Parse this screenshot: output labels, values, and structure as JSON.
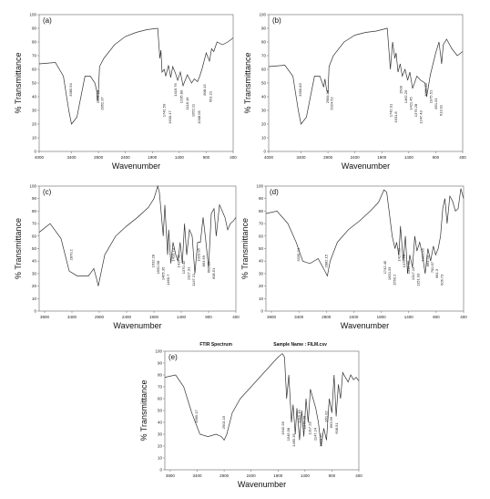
{
  "chart_data": [
    {
      "type": "line",
      "panel_label": "(a)",
      "xlabel": "Wavenumber",
      "ylabel": "% Transmittance",
      "xlim": [
        4000,
        400
      ],
      "ylim": [
        0,
        100
      ],
      "x_ticks": [
        4000,
        3400,
        2900,
        2400,
        1900,
        1400,
        900,
        400
      ],
      "y_ticks": [
        0,
        10,
        20,
        30,
        40,
        50,
        60,
        70,
        80,
        90,
        100
      ],
      "series": [
        {
          "x": [
            4000,
            3700,
            3550,
            3450,
            3400,
            3300,
            3150,
            3050,
            2965,
            2930,
            2921,
            2905,
            2880,
            2800,
            2600,
            2400,
            2200,
            2000,
            1800,
            1760,
            1740,
            1720,
            1680,
            1650,
            1600,
            1560,
            1520,
            1470,
            1430,
            1380,
            1330,
            1250,
            1170,
            1120,
            1060,
            1020,
            980,
            900,
            840,
            800,
            760,
            700,
            600,
            500,
            400
          ],
          "y": [
            64,
            65,
            55,
            30,
            20,
            25,
            55,
            55,
            50,
            44,
            37,
            40,
            62,
            68,
            78,
            84,
            87,
            89,
            90,
            68,
            74,
            58,
            60,
            55,
            63,
            54,
            62,
            57,
            52,
            58,
            48,
            56,
            50,
            53,
            51,
            55,
            60,
            72,
            66,
            75,
            73,
            80,
            78,
            80,
            83
          ]
        }
      ],
      "peak_labels": [
        "3385.54",
        "2921.18",
        "2852.37",
        "1741.50",
        "1630.17",
        "1416.76",
        "1235.89",
        "1118.16",
        "1052.11",
        "1008.05",
        "808.13",
        "601.21"
      ]
    },
    {
      "type": "line",
      "panel_label": "(b)",
      "xlabel": "Wavenumber",
      "ylabel": "% Transmittance",
      "xlim": [
        4000,
        400
      ],
      "ylim": [
        0,
        100
      ],
      "x_ticks": [
        4000,
        3400,
        2900,
        2400,
        1900,
        1400,
        900,
        400
      ],
      "y_ticks": [
        0,
        10,
        20,
        30,
        40,
        50,
        60,
        70,
        80,
        90,
        100
      ],
      "series": [
        {
          "x": [
            4000,
            3700,
            3550,
            3450,
            3400,
            3300,
            3150,
            3050,
            2980,
            2955,
            2925,
            2900,
            2880,
            2800,
            2600,
            2400,
            2200,
            2000,
            1800,
            1742,
            1700,
            1660,
            1635,
            1600,
            1560,
            1520,
            1470,
            1420,
            1380,
            1330,
            1250,
            1180,
            1100,
            1070,
            1050,
            1000,
            900,
            840,
            790,
            760,
            700,
            600,
            500,
            400
          ],
          "y": [
            62,
            63,
            55,
            30,
            20,
            25,
            55,
            55,
            47,
            53,
            45,
            43,
            62,
            70,
            80,
            85,
            87,
            88,
            90,
            60,
            80,
            68,
            72,
            58,
            64,
            55,
            60,
            52,
            58,
            46,
            55,
            52,
            50,
            40,
            44,
            56,
            72,
            80,
            64,
            78,
            82,
            75,
            70,
            73
          ]
        }
      ],
      "peak_labels": [
        "3395.83",
        "2984.96",
        "2924.52",
        "1742.01",
        "1631.8",
        "1500",
        "1462.29",
        "1421.45",
        "1379.28",
        "1247.43",
        "1080.88",
        "1075.51",
        "851.01",
        "613.91"
      ]
    },
    {
      "type": "line",
      "panel_label": "(c)",
      "xlabel": "Wavenumber",
      "ylabel": "% Transmittance",
      "xlim": [
        4000,
        400
      ],
      "ylim": [
        0,
        100
      ],
      "x_ticks": [
        3900,
        3400,
        2900,
        2400,
        1900,
        1400,
        900,
        400
      ],
      "y_ticks": [
        0,
        10,
        20,
        30,
        40,
        50,
        60,
        70,
        80,
        90,
        100
      ],
      "series": [
        {
          "x": [
            4000,
            3800,
            3600,
            3450,
            3300,
            3100,
            3000,
            2950,
            2919,
            2880,
            2800,
            2600,
            2400,
            2200,
            2000,
            1900,
            1830,
            1800,
            1730,
            1700,
            1650,
            1630,
            1590,
            1550,
            1500,
            1460,
            1420,
            1380,
            1340,
            1300,
            1250,
            1200,
            1150,
            1100,
            1050,
            1000,
            960,
            900,
            850,
            800,
            760,
            700,
            650,
            600,
            550,
            500,
            450,
            400
          ],
          "y": [
            63,
            70,
            58,
            32,
            28,
            28,
            34,
            26,
            20,
            28,
            45,
            60,
            68,
            75,
            83,
            90,
            100,
            95,
            60,
            85,
            45,
            65,
            38,
            55,
            45,
            40,
            55,
            38,
            70,
            45,
            65,
            60,
            30,
            55,
            55,
            75,
            60,
            35,
            78,
            82,
            60,
            85,
            80,
            75,
            65,
            70,
            72,
            75
          ]
        }
      ],
      "peak_labels": [
        "2870.2",
        "1632.28",
        "1550.58",
        "1465.35",
        "1460.7",
        "1416.73",
        "1415.49",
        "1370.42",
        "1317.31",
        "1147.21",
        "1020.95",
        "863.59",
        "666.15",
        "608.51"
      ]
    },
    {
      "type": "line",
      "panel_label": "(d)",
      "xlabel": "Wavenumber",
      "ylabel": "% Transmittance",
      "xlim": [
        4000,
        400
      ],
      "ylim": [
        0,
        100
      ],
      "x_ticks": [
        3900,
        3400,
        2900,
        2400,
        1900,
        1400,
        900,
        400
      ],
      "y_ticks": [
        0,
        10,
        20,
        30,
        40,
        50,
        60,
        70,
        80,
        90,
        100
      ],
      "series": [
        {
          "x": [
            4000,
            3800,
            3600,
            3450,
            3330,
            3200,
            3050,
            2950,
            2882,
            2830,
            2700,
            2500,
            2300,
            2100,
            1950,
            1850,
            1800,
            1742,
            1700,
            1650,
            1620,
            1580,
            1550,
            1500,
            1460,
            1420,
            1380,
            1330,
            1290,
            1250,
            1200,
            1150,
            1100,
            1050,
            1000,
            950,
            910,
            863,
            820,
            780,
            740,
            700,
            650,
            600,
            550,
            500,
            450,
            400
          ],
          "y": [
            78,
            80,
            70,
            55,
            40,
            38,
            42,
            34,
            28,
            40,
            55,
            65,
            72,
            80,
            87,
            97,
            95,
            75,
            60,
            50,
            55,
            45,
            68,
            40,
            60,
            30,
            45,
            35,
            60,
            48,
            55,
            45,
            30,
            50,
            40,
            52,
            45,
            50,
            60,
            82,
            90,
            70,
            92,
            88,
            80,
            82,
            98,
            90
          ]
        }
      ],
      "peak_labels": [
        "3335.24",
        "2882.15",
        "1742.45",
        "1620.33",
        "1550.2",
        "1417.33",
        "1370.19",
        "1316.69",
        "1317.15",
        "1151.03",
        "1031.85",
        "863.59",
        "700.57",
        "681.3",
        "606.73"
      ]
    },
    {
      "type": "line",
      "panel_label": "(e)",
      "header_title": "FTIR Spectrum",
      "header_sample": "Sample Name :  FILM.csv",
      "xlabel": "Wavenumber",
      "ylabel": "% Transmittance",
      "xlim": [
        4000,
        400
      ],
      "ylim": [
        0,
        100
      ],
      "x_ticks": [
        3900,
        3400,
        2900,
        2400,
        1900,
        1400,
        900,
        400
      ],
      "y_ticks": [
        0,
        10,
        20,
        30,
        40,
        50,
        60,
        70,
        80,
        90,
        100
      ],
      "series": [
        {
          "x": [
            4000,
            3800,
            3650,
            3500,
            3350,
            3200,
            3050,
            2950,
            2900,
            2850,
            2750,
            2600,
            2400,
            2200,
            2000,
            1900,
            1820,
            1780,
            1740,
            1700,
            1650,
            1620,
            1580,
            1550,
            1500,
            1460,
            1420,
            1380,
            1340,
            1300,
            1250,
            1200,
            1150,
            1100,
            1050,
            1000,
            950,
            900,
            860,
            820,
            780,
            740,
            700,
            650,
            600,
            550,
            500,
            450,
            400
          ],
          "y": [
            78,
            80,
            70,
            48,
            30,
            28,
            30,
            28,
            25,
            30,
            48,
            60,
            70,
            80,
            90,
            95,
            98,
            95,
            60,
            80,
            40,
            55,
            30,
            52,
            25,
            50,
            28,
            60,
            40,
            68,
            60,
            52,
            40,
            20,
            35,
            25,
            60,
            48,
            80,
            45,
            72,
            60,
            82,
            78,
            74,
            80,
            76,
            78,
            75
          ]
        }
      ],
      "peak_labels": [
        "3365.17",
        "2901.15",
        "1642.28",
        "1545.58",
        "1465.35",
        "1415.49",
        "1370.28",
        "1317.28",
        "1147.24",
        "1020.95",
        "951.02",
        "663.59",
        "608.51"
      ]
    }
  ]
}
